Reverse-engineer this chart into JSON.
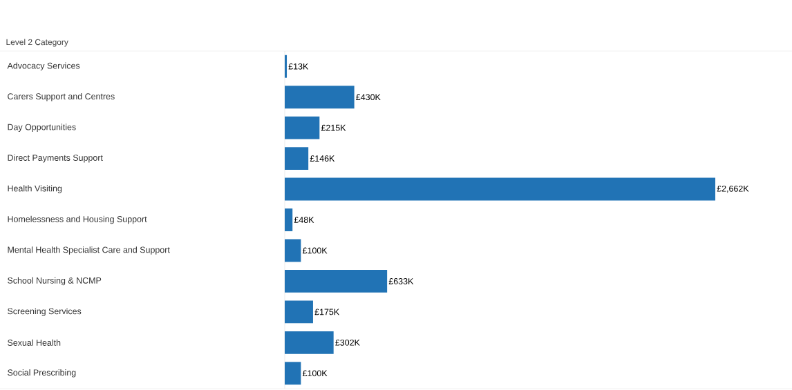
{
  "chart_data": {
    "type": "bar",
    "orientation": "horizontal",
    "ylabel": "Level 2 Category",
    "categories": [
      "Advocacy Services",
      "Carers Support and Centres",
      "Day Opportunities",
      "Direct Payments Support",
      "Health Visiting",
      "Homelessness and Housing Support",
      "Mental Health Specialist Care and Support",
      "School Nursing & NCMP",
      "Screening Services",
      "Sexual Health",
      "Social Prescribing"
    ],
    "values": [
      13,
      430,
      215,
      146,
      2662,
      48,
      100,
      633,
      175,
      302,
      100
    ],
    "value_labels": [
      "£13K",
      "£430K",
      "£215K",
      "£146K",
      "£2,662K",
      "£48K",
      "£100K",
      "£633K",
      "£175K",
      "£302K",
      "£100K"
    ],
    "color": "#2173b5"
  }
}
